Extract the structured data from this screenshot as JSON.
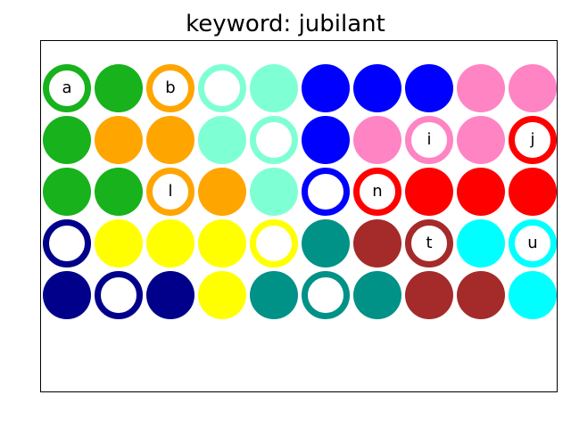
{
  "title": "keyword: jubilant",
  "palette": {
    "green": "#17b21c",
    "orange": "#ffa500",
    "aquamarine": "#7fffd4",
    "blue": "#0000ff",
    "pink": "#ff84c4",
    "red": "#ff0000",
    "navy": "#00008b",
    "yellow": "#ffff00",
    "teal": "#009187",
    "brown": "#a52a2a",
    "cyan": "#00ffff"
  },
  "grid": [
    [
      {
        "color": "green",
        "style": "ring",
        "letter": "a"
      },
      {
        "color": "green",
        "style": "solid",
        "letter": ""
      },
      {
        "color": "orange",
        "style": "ring",
        "letter": "b"
      },
      {
        "color": "aquamarine",
        "style": "ring",
        "letter": ""
      },
      {
        "color": "aquamarine",
        "style": "solid",
        "letter": ""
      },
      {
        "color": "blue",
        "style": "solid",
        "letter": ""
      },
      {
        "color": "blue",
        "style": "solid",
        "letter": ""
      },
      {
        "color": "blue",
        "style": "solid",
        "letter": ""
      },
      {
        "color": "pink",
        "style": "solid",
        "letter": ""
      },
      {
        "color": "pink",
        "style": "solid",
        "letter": ""
      }
    ],
    [
      {
        "color": "green",
        "style": "solid",
        "letter": ""
      },
      {
        "color": "orange",
        "style": "solid",
        "letter": ""
      },
      {
        "color": "orange",
        "style": "solid",
        "letter": ""
      },
      {
        "color": "aquamarine",
        "style": "solid",
        "letter": ""
      },
      {
        "color": "aquamarine",
        "style": "ring",
        "letter": ""
      },
      {
        "color": "blue",
        "style": "solid",
        "letter": ""
      },
      {
        "color": "pink",
        "style": "solid",
        "letter": ""
      },
      {
        "color": "pink",
        "style": "ring",
        "letter": "i"
      },
      {
        "color": "pink",
        "style": "solid",
        "letter": ""
      },
      {
        "color": "red",
        "style": "ring",
        "letter": "j"
      }
    ],
    [
      {
        "color": "green",
        "style": "solid",
        "letter": ""
      },
      {
        "color": "green",
        "style": "solid",
        "letter": ""
      },
      {
        "color": "orange",
        "style": "ring",
        "letter": "l"
      },
      {
        "color": "orange",
        "style": "solid",
        "letter": ""
      },
      {
        "color": "aquamarine",
        "style": "solid",
        "letter": ""
      },
      {
        "color": "blue",
        "style": "ring",
        "letter": ""
      },
      {
        "color": "red",
        "style": "ring",
        "letter": "n"
      },
      {
        "color": "red",
        "style": "solid",
        "letter": ""
      },
      {
        "color": "red",
        "style": "solid",
        "letter": ""
      },
      {
        "color": "red",
        "style": "solid",
        "letter": ""
      }
    ],
    [
      {
        "color": "navy",
        "style": "ring",
        "letter": ""
      },
      {
        "color": "yellow",
        "style": "solid",
        "letter": ""
      },
      {
        "color": "yellow",
        "style": "solid",
        "letter": ""
      },
      {
        "color": "yellow",
        "style": "solid",
        "letter": ""
      },
      {
        "color": "yellow",
        "style": "ring",
        "letter": ""
      },
      {
        "color": "teal",
        "style": "solid",
        "letter": ""
      },
      {
        "color": "brown",
        "style": "solid",
        "letter": ""
      },
      {
        "color": "brown",
        "style": "ring",
        "letter": "t"
      },
      {
        "color": "cyan",
        "style": "solid",
        "letter": ""
      },
      {
        "color": "cyan",
        "style": "ring",
        "letter": "u"
      }
    ],
    [
      {
        "color": "navy",
        "style": "solid",
        "letter": ""
      },
      {
        "color": "navy",
        "style": "ring",
        "letter": ""
      },
      {
        "color": "navy",
        "style": "solid",
        "letter": ""
      },
      {
        "color": "yellow",
        "style": "solid",
        "letter": ""
      },
      {
        "color": "teal",
        "style": "solid",
        "letter": ""
      },
      {
        "color": "teal",
        "style": "ring",
        "letter": ""
      },
      {
        "color": "teal",
        "style": "solid",
        "letter": ""
      },
      {
        "color": "brown",
        "style": "solid",
        "letter": ""
      },
      {
        "color": "brown",
        "style": "solid",
        "letter": ""
      },
      {
        "color": "cyan",
        "style": "solid",
        "letter": ""
      }
    ]
  ]
}
